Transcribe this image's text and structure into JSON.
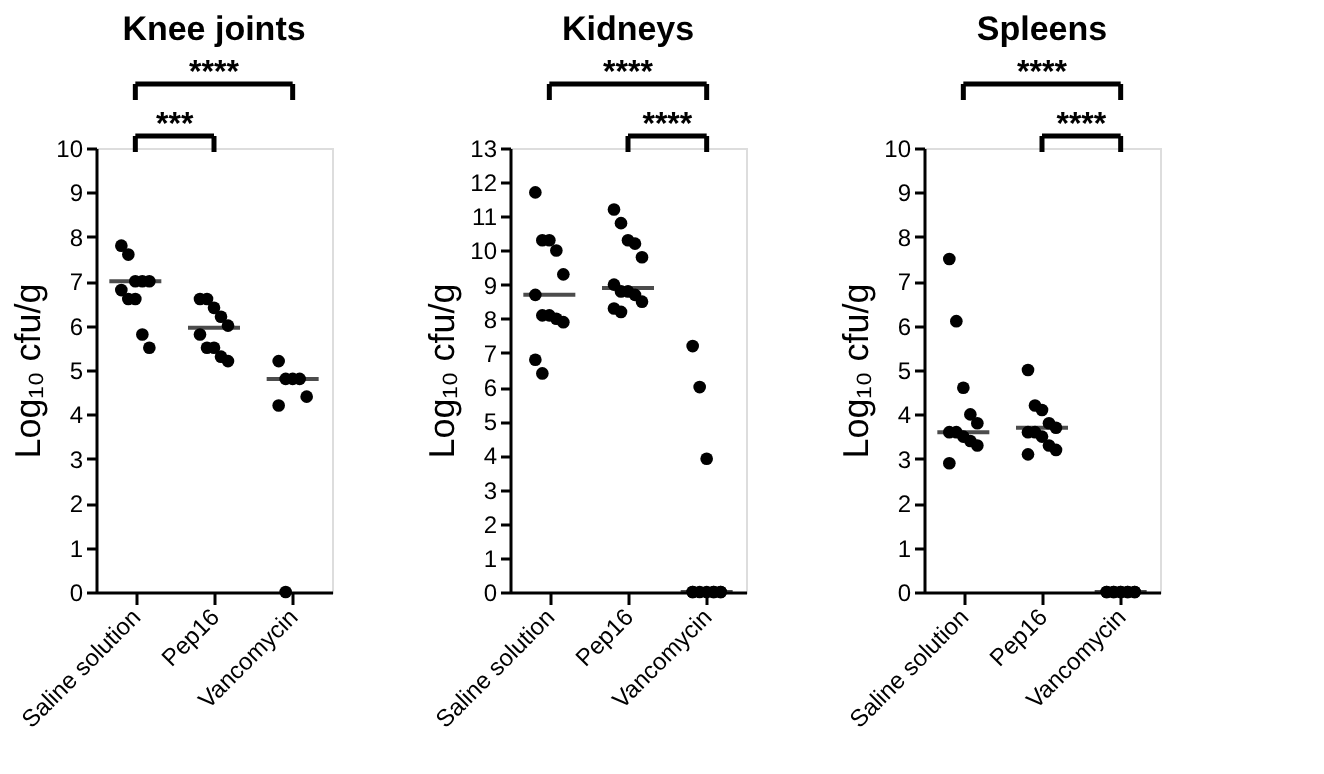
{
  "chart_data": [
    {
      "type": "scatter",
      "title": "Knee joints",
      "ylabel": "Log₁₀ cfu/g",
      "categories": [
        "Saline solution",
        "Pep16",
        "Vancomycin"
      ],
      "ylim": [
        0,
        10
      ],
      "yticks": [
        0,
        1,
        2,
        3,
        4,
        5,
        6,
        7,
        8,
        9,
        10
      ],
      "grid": false,
      "marker": "circle",
      "annotations": [
        "****",
        "***"
      ],
      "series": [
        {
          "type": "scatter",
          "color": "#000000",
          "x": [
            "Saline solution",
            "Saline solution",
            "Saline solution",
            "Saline solution",
            "Saline solution",
            "Saline solution",
            "Saline solution",
            "Saline solution",
            "Saline solution",
            "Saline solution",
            "Pep16",
            "Pep16",
            "Pep16",
            "Pep16",
            "Pep16",
            "Pep16",
            "Pep16",
            "Pep16",
            "Pep16",
            "Pep16",
            "Vancomycin",
            "Vancomycin",
            "Vancomycin",
            "Vancomycin",
            "Vancomycin",
            "Vancomycin",
            "Vancomycin"
          ],
          "values": [
            7.8,
            7.6,
            7.0,
            7.0,
            7.0,
            6.8,
            6.6,
            6.6,
            5.8,
            5.5,
            6.6,
            6.6,
            6.4,
            6.2,
            6.0,
            5.8,
            5.5,
            5.5,
            5.3,
            5.2,
            5.2,
            4.8,
            4.8,
            4.8,
            4.4,
            4.2,
            0
          ]
        },
        {
          "type": "box",
          "color": "#000000",
          "boxes": [
            {
              "low": 7.0,
              "q1": 7.0,
              "median": 7.0,
              "q3": 7.0,
              "high": 7.0
            },
            {
              "low": 5.95,
              "q1": 5.95,
              "median": 5.95,
              "q3": 5.95,
              "high": 5.95
            },
            {
              "low": 4.8,
              "q1": 4.8,
              "median": 4.8,
              "q3": 4.8,
              "high": 4.8
            }
          ]
        }
      ]
    },
    {
      "type": "scatter",
      "title": "Kidneys",
      "ylabel": "Log₁₀ cfu/g",
      "categories": [
        "Saline solution",
        "Pep16",
        "Vancomycin"
      ],
      "ylim": [
        0,
        13
      ],
      "yticks": [
        0,
        1,
        2,
        3,
        4,
        5,
        6,
        7,
        8,
        9,
        10,
        11,
        12,
        13
      ],
      "grid": false,
      "marker": "circle",
      "annotations": [
        "****",
        "****"
      ],
      "series": [
        {
          "type": "scatter",
          "color": "#000000",
          "x": [
            "Saline solution",
            "Saline solution",
            "Saline solution",
            "Saline solution",
            "Saline solution",
            "Saline solution",
            "Saline solution",
            "Saline solution",
            "Saline solution",
            "Saline solution",
            "Saline solution",
            "Saline solution",
            "Pep16",
            "Pep16",
            "Pep16",
            "Pep16",
            "Pep16",
            "Pep16",
            "Pep16",
            "Pep16",
            "Pep16",
            "Pep16",
            "Pep16",
            "Pep16",
            "Vancomycin",
            "Vancomycin",
            "Vancomycin",
            "Vancomycin",
            "Vancomycin",
            "Vancomycin",
            "Vancomycin",
            "Vancomycin",
            "Vancomycin",
            "Vancomycin",
            "Vancomycin"
          ],
          "values": [
            11.7,
            10.3,
            10.3,
            10.0,
            9.3,
            8.7,
            8.1,
            8.1,
            8.0,
            7.9,
            6.8,
            6.4,
            11.2,
            10.8,
            10.3,
            10.2,
            9.8,
            9.0,
            8.8,
            8.8,
            8.7,
            8.5,
            8.3,
            8.2,
            7.2,
            6.0,
            3.9,
            0,
            0,
            0,
            0,
            0,
            0,
            0,
            0
          ]
        },
        {
          "type": "box",
          "color": "#000000",
          "boxes": [
            {
              "low": 8.7,
              "q1": 8.7,
              "median": 8.7,
              "q3": 8.7,
              "high": 8.7
            },
            {
              "low": 8.9,
              "q1": 8.9,
              "median": 8.9,
              "q3": 8.9,
              "high": 8.9
            },
            {
              "low": 0,
              "q1": 0,
              "median": 0,
              "q3": 0,
              "high": 0
            }
          ]
        }
      ]
    },
    {
      "type": "scatter",
      "title": "Spleens",
      "ylabel": "Log₁₀ cfu/g",
      "categories": [
        "Saline solution",
        "Pep16",
        "Vancomycin"
      ],
      "ylim": [
        0,
        10
      ],
      "yticks": [
        0,
        1,
        2,
        3,
        4,
        5,
        6,
        7,
        8,
        9,
        10
      ],
      "grid": false,
      "marker": "circle",
      "annotations": [
        "****",
        "****"
      ],
      "series": [
        {
          "type": "scatter",
          "color": "#000000",
          "x": [
            "Saline solution",
            "Saline solution",
            "Saline solution",
            "Saline solution",
            "Saline solution",
            "Saline solution",
            "Saline solution",
            "Saline solution",
            "Saline solution",
            "Saline solution",
            "Saline solution",
            "Pep16",
            "Pep16",
            "Pep16",
            "Pep16",
            "Pep16",
            "Pep16",
            "Pep16",
            "Pep16",
            "Pep16",
            "Pep16",
            "Pep16",
            "Vancomycin",
            "Vancomycin",
            "Vancomycin",
            "Vancomycin",
            "Vancomycin",
            "Vancomycin",
            "Vancomycin",
            "Vancomycin",
            "Vancomycin",
            "Vancomycin"
          ],
          "values": [
            7.5,
            6.1,
            4.6,
            4.0,
            3.8,
            3.6,
            3.6,
            3.5,
            3.4,
            3.3,
            2.9,
            5.0,
            4.2,
            4.1,
            3.8,
            3.7,
            3.6,
            3.6,
            3.5,
            3.3,
            3.2,
            3.1,
            0,
            0,
            0,
            0,
            0,
            0,
            0,
            0,
            0,
            0
          ]
        },
        {
          "type": "box",
          "color": "#000000",
          "boxes": [
            {
              "low": 3.6,
              "q1": 3.6,
              "median": 3.6,
              "q3": 3.6,
              "high": 3.6
            },
            {
              "low": 3.7,
              "q1": 3.7,
              "median": 3.7,
              "q3": 3.7,
              "high": 3.7
            },
            {
              "low": 0,
              "q1": 0,
              "median": 0,
              "q3": 0,
              "high": 0
            }
          ]
        }
      ]
    }
  ]
}
